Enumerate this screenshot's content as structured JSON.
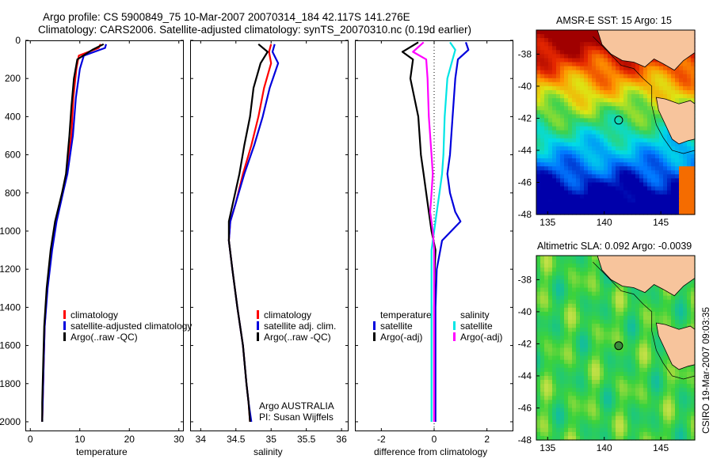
{
  "title_line1": "Argo profile: CS 5900849_75 10-Mar-2007 20070314_184 42.117S 141.276E",
  "title_line2": "Climatology: CARS2006. Satellite-adjusted climatology: synTS_20070310.nc (0.19d earlier)",
  "credit": "CSIRO 19-Mar-2007 09:03:35",
  "colors": {
    "climatology": "#ff0000",
    "satellite": "#0000dd",
    "argo": "#000000",
    "sal_satellite": "#00e5e5",
    "sal_argo": "#ff00ff",
    "land": "#f7c49c"
  },
  "depth_ticks": [
    "0",
    "200",
    "400",
    "600",
    "800",
    "1000",
    "1200",
    "1400",
    "1600",
    "1800",
    "2000"
  ],
  "depth_values": [
    0,
    200,
    400,
    600,
    800,
    1000,
    1200,
    1400,
    1600,
    1800,
    2000
  ],
  "chart_data": [
    {
      "type": "line",
      "xlabel": "temperature",
      "xlim": [
        -1,
        31
      ],
      "ylim": [
        2050,
        0
      ],
      "xticks": [
        "0",
        "10",
        "20",
        "30"
      ],
      "xtick_values": [
        0,
        10,
        20,
        30
      ],
      "legend": [
        "climatology",
        "satellite-adjusted climatology",
        "Argo(..raw -QC)"
      ],
      "series": [
        {
          "name": "climatology",
          "color": "#ff0000",
          "x": [
            14.2,
            13.8,
            9.8,
            9.3,
            8.7,
            8.3,
            7.3,
            6.5,
            5.2,
            4.3,
            3.4,
            2.9,
            2.7,
            2.6,
            2.5,
            2.4
          ],
          "y": [
            20,
            40,
            80,
            150,
            300,
            500,
            700,
            800,
            950,
            1100,
            1300,
            1500,
            1700,
            1800,
            1900,
            2000
          ]
        },
        {
          "name": "satellite-adjusted climatology",
          "color": "#0000dd",
          "x": [
            15.3,
            15.1,
            10.8,
            10.0,
            9.2,
            8.6,
            7.5,
            6.6,
            5.3,
            4.4,
            3.5,
            2.9,
            2.7,
            2.6,
            2.5,
            2.4
          ],
          "y": [
            20,
            40,
            80,
            150,
            300,
            500,
            700,
            800,
            950,
            1100,
            1300,
            1500,
            1700,
            1800,
            1900,
            2000
          ]
        },
        {
          "name": "Argo(..raw -QC)",
          "color": "#000000",
          "x": [
            14.8,
            12.5,
            9.5,
            8.8,
            8.3,
            7.9,
            7.2,
            6.4,
            5.0,
            4.1,
            3.3,
            2.8,
            2.6,
            2.5,
            2.4,
            2.4
          ],
          "y": [
            20,
            50,
            100,
            200,
            350,
            500,
            700,
            800,
            950,
            1100,
            1300,
            1500,
            1700,
            1800,
            1900,
            2000
          ]
        }
      ]
    },
    {
      "type": "line",
      "xlabel": "salinity",
      "xlim": [
        33.85,
        36.1
      ],
      "ylim": [
        2050,
        0
      ],
      "xticks": [
        "34",
        "34.5",
        "35",
        "35.5",
        "36"
      ],
      "xtick_values": [
        34,
        34.5,
        35,
        35.5,
        36
      ],
      "legend": [
        "climatology",
        "satellite adj. clim.",
        "Argo(..raw -QC)"
      ],
      "annotation": [
        "Argo AUSTRALIA",
        "PI: Susan Wijffels"
      ],
      "series": [
        {
          "name": "climatology",
          "color": "#ff0000",
          "x": [
            35.0,
            34.97,
            35.0,
            34.9,
            34.82,
            34.72,
            34.6,
            34.5,
            34.42,
            34.4,
            34.45,
            34.52,
            34.6,
            34.65,
            34.68,
            34.7
          ],
          "y": [
            20,
            60,
            120,
            250,
            400,
            550,
            700,
            850,
            950,
            1050,
            1200,
            1400,
            1600,
            1800,
            1900,
            2000
          ]
        },
        {
          "name": "satellite adj. clim.",
          "color": "#0000dd",
          "x": [
            35.05,
            35.02,
            35.1,
            34.98,
            34.88,
            34.76,
            34.62,
            34.5,
            34.42,
            34.4,
            34.45,
            34.52,
            34.6,
            34.65,
            34.68,
            34.72
          ],
          "y": [
            20,
            60,
            120,
            250,
            400,
            550,
            700,
            850,
            950,
            1050,
            1200,
            1400,
            1600,
            1800,
            1900,
            2000
          ]
        },
        {
          "name": "Argo(..raw -QC)",
          "color": "#000000",
          "x": [
            34.82,
            34.95,
            34.85,
            34.75,
            34.7,
            34.62,
            34.55,
            34.46,
            34.4,
            34.4,
            34.45,
            34.52,
            34.6,
            34.65,
            34.68,
            34.7
          ],
          "y": [
            20,
            60,
            120,
            250,
            400,
            550,
            700,
            850,
            950,
            1050,
            1200,
            1400,
            1600,
            1800,
            1900,
            2000
          ]
        }
      ]
    },
    {
      "type": "line",
      "xlabel": "difference from climatology",
      "xlim": [
        -3,
        3
      ],
      "ylim": [
        2050,
        0
      ],
      "xticks": [
        "-2",
        "0",
        "2"
      ],
      "xtick_values": [
        -2,
        0,
        2
      ],
      "legend": [
        "temperature",
        "satellite",
        "Argo(-adj)",
        "salinity",
        "satellite",
        "Argo(-adj)"
      ],
      "series": [
        {
          "name": "satellite",
          "color": "#0000dd",
          "x": [
            1.2,
            1.3,
            0.9,
            0.8,
            0.7,
            0.6,
            0.5,
            0.6,
            0.8,
            1.0,
            0.3,
            0.1,
            0.05,
            0.05,
            0.05,
            0.05
          ],
          "y": [
            10,
            50,
            100,
            200,
            400,
            600,
            700,
            800,
            900,
            950,
            1050,
            1200,
            1400,
            1600,
            1800,
            2000
          ]
        },
        {
          "name": "Argo(-adj)",
          "color": "#000000",
          "x": [
            -0.6,
            -1.2,
            -0.8,
            -0.9,
            -0.6,
            -0.5,
            -0.4,
            -0.3,
            -0.2,
            -0.1,
            0.05,
            0.02,
            0.0,
            0.0,
            0.0,
            0.0
          ],
          "y": [
            10,
            60,
            100,
            200,
            400,
            600,
            700,
            800,
            900,
            1000,
            1100,
            1200,
            1400,
            1600,
            1800,
            2000
          ]
        },
        {
          "name": "satellite",
          "color": "#00e5e5",
          "x": [
            0.6,
            0.8,
            0.7,
            0.5,
            0.4,
            0.35,
            0.3,
            0.2,
            0.1,
            0.0,
            -0.1,
            -0.1,
            -0.1,
            -0.1,
            -0.1,
            -0.1
          ],
          "y": [
            10,
            50,
            100,
            200,
            400,
            600,
            700,
            800,
            900,
            1000,
            1100,
            1200,
            1400,
            1600,
            1800,
            2000
          ]
        },
        {
          "name": "Argo(-adj)",
          "color": "#ff00ff",
          "x": [
            -0.4,
            -0.8,
            -0.3,
            -0.25,
            -0.2,
            -0.1,
            -0.05,
            -0.1,
            -0.15,
            -0.05,
            0.0,
            0.0,
            0.0,
            0.0,
            0.0,
            0.0
          ],
          "y": [
            10,
            60,
            100,
            200,
            400,
            600,
            700,
            800,
            900,
            1000,
            1100,
            1200,
            1400,
            1600,
            1800,
            2000
          ]
        }
      ]
    },
    {
      "type": "heatmap",
      "title": "AMSR-E SST: 15 Argo: 15",
      "xlim": [
        134,
        148
      ],
      "ylim": [
        -48,
        -36.5
      ],
      "xticks": [
        "135",
        "140",
        "145"
      ],
      "xtick_values": [
        135,
        140,
        145
      ],
      "yticks": [
        "-38",
        "-40",
        "-42",
        "-44",
        "-46",
        "-48"
      ],
      "ytick_values": [
        -38,
        -40,
        -42,
        -44,
        -46,
        -48
      ],
      "marker": {
        "lon": 141.276,
        "lat": -42.117
      }
    },
    {
      "type": "heatmap",
      "title": "Altimetric SLA: 0.092 Argo: -0.0039",
      "xlim": [
        134,
        148
      ],
      "ylim": [
        -48,
        -36.5
      ],
      "xticks": [
        "135",
        "140",
        "145"
      ],
      "xtick_values": [
        135,
        140,
        145
      ],
      "yticks": [
        "-38",
        "-40",
        "-42",
        "-44",
        "-46",
        "-48"
      ],
      "ytick_values": [
        -38,
        -40,
        -42,
        -44,
        -46,
        -48
      ],
      "marker": {
        "lon": 141.276,
        "lat": -42.117
      }
    }
  ]
}
